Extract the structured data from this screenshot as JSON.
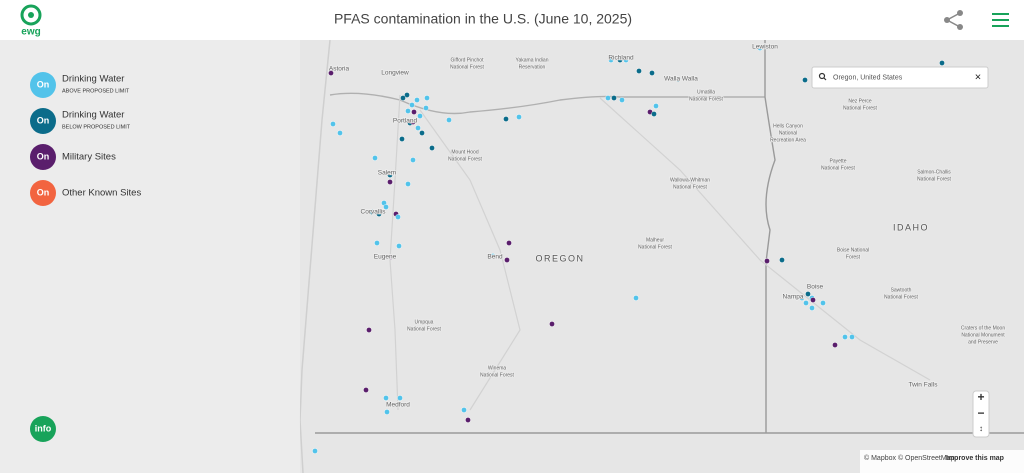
{
  "header": {
    "logo": "ewg",
    "title": "PFAS contamination in the U.S. (June 10, 2025)"
  },
  "legend": [
    {
      "badge": "On",
      "label": "Drinking Water",
      "sublabel": "ABOVE PROPOSED LIMIT",
      "color": "#52c3ea"
    },
    {
      "badge": "On",
      "label": "Drinking Water",
      "sublabel": "BELOW PROPOSED LIMIT",
      "color": "#0b6c8a"
    },
    {
      "badge": "On",
      "label": "Military Sites",
      "color": "#5a1e6c"
    },
    {
      "badge": "On",
      "label": "Other Known Sites",
      "color": "#f26440"
    }
  ],
  "info_button": "info",
  "search": {
    "query": "Oregon, United States",
    "clear": "×"
  },
  "zoom": {
    "in": "+",
    "out": "−",
    "reset": "↕"
  },
  "attribution": {
    "text": "© Mapbox © OpenStreetMap",
    "link": "Improve this map"
  },
  "map_labels": [
    {
      "lines": [
        "Astoria"
      ]
    },
    {
      "lines": [
        "Longview"
      ]
    },
    {
      "lines": [
        "Gifford Pinchot",
        "National Forest"
      ]
    },
    {
      "lines": [
        "Yakama Indian",
        "Reservation"
      ]
    },
    {
      "lines": [
        "Richland"
      ]
    },
    {
      "lines": [
        "Lewiston"
      ]
    },
    {
      "lines": [
        "Walla Walla"
      ]
    },
    {
      "lines": [
        "Umatilla",
        "National Forest"
      ]
    },
    {
      "lines": [
        "Nez Perce",
        "National Forest"
      ]
    },
    {
      "lines": [
        "Portland"
      ]
    },
    {
      "lines": [
        "Mount Hood",
        "National Forest"
      ]
    },
    {
      "lines": [
        "Hells Canyon",
        "National",
        "Recreation Area"
      ]
    },
    {
      "lines": [
        "Payette",
        "National Forest"
      ]
    },
    {
      "lines": [
        "Salem"
      ]
    },
    {
      "lines": [
        "Wallowa-Whitman",
        "National Forest"
      ]
    },
    {
      "lines": [
        "Salmon-Challis",
        "National Forest"
      ]
    },
    {
      "lines": [
        "Corvallis"
      ]
    },
    {
      "lines": [
        "IDAHO"
      ]
    },
    {
      "lines": [
        "Malheur",
        "National Forest"
      ]
    },
    {
      "lines": [
        "Boise National",
        "Forest"
      ]
    },
    {
      "lines": [
        "Eugene"
      ]
    },
    {
      "lines": [
        "Bend"
      ]
    },
    {
      "lines": [
        "OREGON"
      ]
    },
    {
      "lines": [
        "Boise"
      ]
    },
    {
      "lines": [
        "Nampa"
      ]
    },
    {
      "lines": [
        "Sawtooth",
        "National Forest"
      ]
    },
    {
      "lines": [
        "Umpqua",
        "National Forest"
      ]
    },
    {
      "lines": [
        "Craters of the Moon",
        "National Monument",
        "and Preserve"
      ]
    },
    {
      "lines": [
        "Winema",
        "National Forest"
      ]
    },
    {
      "lines": [
        "Twin Falls"
      ]
    },
    {
      "lines": [
        "Medford"
      ]
    }
  ]
}
